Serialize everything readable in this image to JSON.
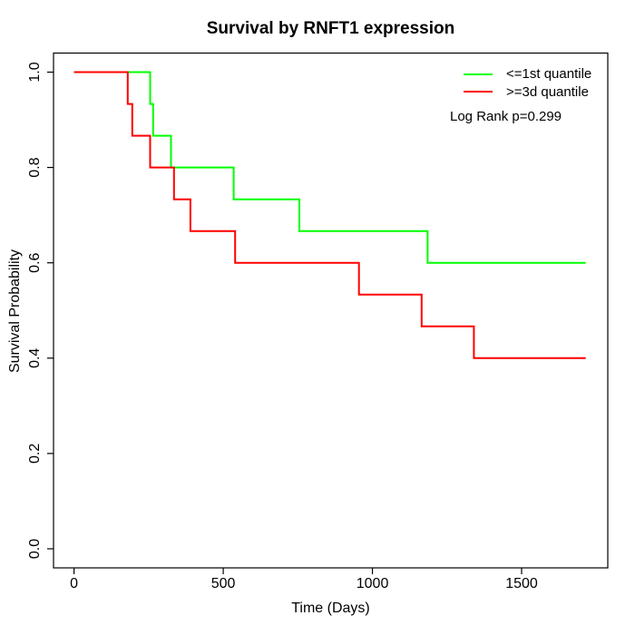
{
  "title": "Survival by RNFT1 expression",
  "axes": {
    "x_label": "Time (Days)",
    "y_label": "Survival Probability",
    "x_ticks": [
      "0",
      "500",
      "1000",
      "1500"
    ],
    "x_tick_values": [
      0,
      500,
      1000,
      1500
    ],
    "y_ticks": [
      "0.0",
      "0.2",
      "0.4",
      "0.6",
      "0.8",
      "1.0"
    ],
    "y_tick_values": [
      0,
      0.2,
      0.4,
      0.6,
      0.8,
      1.0
    ]
  },
  "legend": {
    "entries": [
      {
        "label": "<=1st quantile",
        "color": "#00ff00"
      },
      {
        "label": ">=3d quantile",
        "color": "#ff0000"
      }
    ],
    "note": "Log Rank p=0.299"
  },
  "colors": {
    "group1": "#00ff00",
    "group2": "#ff0000",
    "axis": "#000000",
    "background": "#ffffff"
  },
  "chart_data": {
    "type": "line",
    "subtype": "kaplan-meier-step",
    "title": "Survival by RNFT1 expression",
    "xlabel": "Time (Days)",
    "ylabel": "Survival Probability",
    "xlim": [
      0,
      1720
    ],
    "ylim": [
      0,
      1
    ],
    "axis_padding_fraction": 0.04,
    "grid": false,
    "legend_position": "top-right",
    "annotation": "Log Rank p=0.299",
    "series": [
      {
        "name": "<=1st quantile",
        "color": "#00ff00",
        "points": [
          [
            0,
            1.0
          ],
          [
            255,
            0.9333
          ],
          [
            265,
            0.8667
          ],
          [
            325,
            0.8
          ],
          [
            535,
            0.7333
          ],
          [
            755,
            0.6667
          ],
          [
            1185,
            0.6
          ],
          [
            1715,
            0.6
          ]
        ]
      },
      {
        "name": ">=3d quantile",
        "color": "#ff0000",
        "points": [
          [
            0,
            1.0
          ],
          [
            180,
            0.9333
          ],
          [
            195,
            0.8667
          ],
          [
            255,
            0.8
          ],
          [
            335,
            0.7333
          ],
          [
            390,
            0.6667
          ],
          [
            540,
            0.6
          ],
          [
            955,
            0.5333
          ],
          [
            1165,
            0.4667
          ],
          [
            1340,
            0.4
          ],
          [
            1715,
            0.4
          ]
        ]
      }
    ]
  }
}
